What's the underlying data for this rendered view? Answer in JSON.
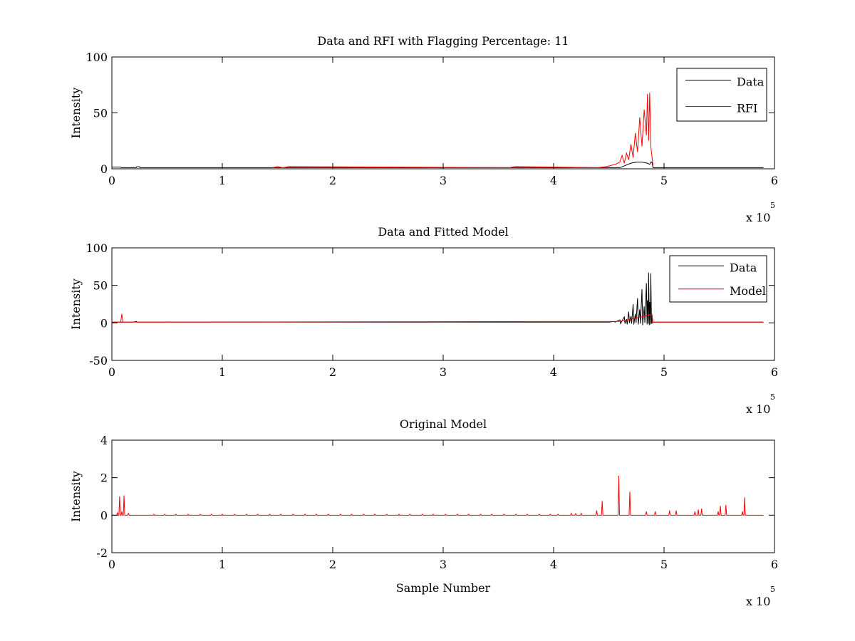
{
  "figure": {
    "background": "#ffffff",
    "data_color": "#000000",
    "model_color": "#ff0000"
  },
  "chart_data": [
    {
      "type": "line",
      "title": "Data and RFI with Flagging Percentage: 11",
      "xlabel": "",
      "ylabel": "Intensity",
      "xlim": [
        0,
        600000
      ],
      "ylim": [
        0,
        100
      ],
      "xticks": [
        0,
        100000,
        200000,
        300000,
        400000,
        500000,
        600000
      ],
      "xtick_labels": [
        "0",
        "1",
        "2",
        "3",
        "4",
        "5",
        "6"
      ],
      "yticks": [
        0,
        50,
        100
      ],
      "ytick_labels": [
        "0",
        "50",
        "100"
      ],
      "x_exponent_base": "x 10",
      "x_exponent_power": "5",
      "legend": {
        "position": "top-right",
        "entries": [
          "Data",
          "RFI"
        ]
      },
      "series": [
        {
          "name": "Data",
          "color": "#000000",
          "x": [
            0,
            8000,
            8500,
            22000,
            22500,
            25000,
            25500,
            460000,
            465000,
            470000,
            475000,
            480000,
            485000,
            487000,
            488000,
            489000,
            490000,
            590000
          ],
          "y": [
            1.5,
            1.5,
            1.0,
            1.0,
            1.8,
            1.8,
            1.0,
            1.0,
            3,
            5,
            6,
            6,
            5,
            4,
            6,
            6,
            1.0,
            1.0
          ]
        },
        {
          "name": "RFI",
          "color": "#ff0000",
          "x": [
            145000,
            150000,
            155000,
            160000,
            360000,
            365000,
            440000,
            448000,
            452000,
            456000,
            460000,
            462000,
            464000,
            466000,
            468000,
            470000,
            472000,
            474000,
            476000,
            478000,
            480000,
            482000,
            484000,
            485000,
            486000,
            487000,
            488000,
            490000
          ],
          "y": [
            1,
            2,
            1,
            2,
            1,
            2,
            1,
            2,
            3,
            4,
            6,
            12,
            5,
            14,
            8,
            22,
            10,
            32,
            15,
            46,
            20,
            53,
            30,
            67,
            25,
            68,
            20,
            3
          ]
        }
      ]
    },
    {
      "type": "line",
      "title": "Data and Fitted Model",
      "xlabel": "",
      "ylabel": "Intensity",
      "xlim": [
        0,
        600000
      ],
      "ylim": [
        -50,
        100
      ],
      "xticks": [
        0,
        100000,
        200000,
        300000,
        400000,
        500000,
        600000
      ],
      "xtick_labels": [
        "0",
        "1",
        "2",
        "3",
        "4",
        "5",
        "6"
      ],
      "yticks": [
        -50,
        0,
        50,
        100
      ],
      "ytick_labels": [
        "-50",
        "0",
        "50",
        "100"
      ],
      "x_exponent_base": "x 10",
      "x_exponent_power": "5",
      "legend": {
        "position": "top-right",
        "entries": [
          "Data",
          "Model"
        ]
      },
      "series": [
        {
          "name": "Data",
          "color": "#000000",
          "x": [
            0,
            20000,
            22000,
            25000,
            450000,
            455000,
            460000,
            464000,
            466000,
            468000,
            470000,
            472000,
            474000,
            476000,
            478000,
            480000,
            482000,
            484000,
            485000,
            486000,
            487000,
            488000,
            489000,
            490000,
            590000
          ],
          "y": [
            1,
            1,
            2,
            1,
            1,
            2,
            4,
            8,
            5,
            15,
            9,
            25,
            12,
            33,
            18,
            45,
            22,
            53,
            30,
            67,
            28,
            66,
            12,
            1,
            1
          ],
          "min_y": [
            1,
            1,
            1,
            1,
            1,
            1,
            -1,
            -1,
            -2,
            0,
            -1,
            -2,
            0,
            -2,
            -1,
            -3,
            0,
            -2,
            -1,
            -3,
            -2,
            -1,
            0,
            1,
            1
          ]
        },
        {
          "name": "Model",
          "color": "#ff0000",
          "x": [
            0,
            8000,
            9000,
            10000,
            11000,
            460000,
            470000,
            480000,
            488000,
            489000,
            490000,
            590000
          ],
          "y": [
            1,
            1,
            12,
            1,
            1,
            2,
            5,
            8,
            11,
            11,
            1,
            1
          ]
        }
      ]
    },
    {
      "type": "line",
      "title": "Original Model",
      "xlabel": "Sample Number",
      "ylabel": "Intensity",
      "xlim": [
        0,
        600000
      ],
      "ylim": [
        -2,
        4
      ],
      "xticks": [
        0,
        100000,
        200000,
        300000,
        400000,
        500000,
        600000
      ],
      "xtick_labels": [
        "0",
        "1",
        "2",
        "3",
        "4",
        "5",
        "6"
      ],
      "yticks": [
        -2,
        0,
        2,
        4
      ],
      "ytick_labels": [
        "-2",
        "0",
        "2",
        "4"
      ],
      "x_exponent_base": "x 10",
      "x_exponent_power": "5",
      "series": [
        {
          "name": "",
          "color": "#ff0000",
          "baseline": 0,
          "peaks_x": [
            5000,
            7000,
            9000,
            11000,
            15000,
            38000,
            48000,
            58000,
            69000,
            80000,
            90000,
            100000,
            111000,
            122000,
            132000,
            143000,
            153000,
            164000,
            175000,
            185000,
            196000,
            207000,
            217000,
            228000,
            238000,
            249000,
            260000,
            270000,
            281000,
            291000,
            302000,
            313000,
            323000,
            334000,
            344000,
            355000,
            366000,
            376000,
            387000,
            397000,
            404000,
            416000,
            420000,
            425000,
            439000,
            444000,
            459000,
            469000,
            484000,
            492000,
            505000,
            511000,
            528000,
            531000,
            534000,
            549000,
            551000,
            556000,
            571000,
            573000
          ],
          "peaks_y": [
            0.15,
            1.0,
            0.2,
            1.05,
            0.1,
            0.05,
            0.05,
            0.05,
            0.05,
            0.05,
            0.05,
            0.05,
            0.05,
            0.05,
            0.05,
            0.05,
            0.05,
            0.05,
            0.05,
            0.05,
            0.05,
            0.05,
            0.05,
            0.05,
            0.05,
            0.05,
            0.05,
            0.05,
            0.05,
            0.05,
            0.05,
            0.05,
            0.05,
            0.05,
            0.05,
            0.05,
            0.05,
            0.05,
            0.05,
            0.05,
            0.05,
            0.1,
            0.08,
            0.1,
            0.25,
            0.75,
            2.1,
            1.25,
            0.2,
            0.2,
            0.25,
            0.25,
            0.2,
            0.3,
            0.35,
            0.2,
            0.5,
            0.55,
            0.2,
            0.95
          ]
        }
      ]
    }
  ]
}
